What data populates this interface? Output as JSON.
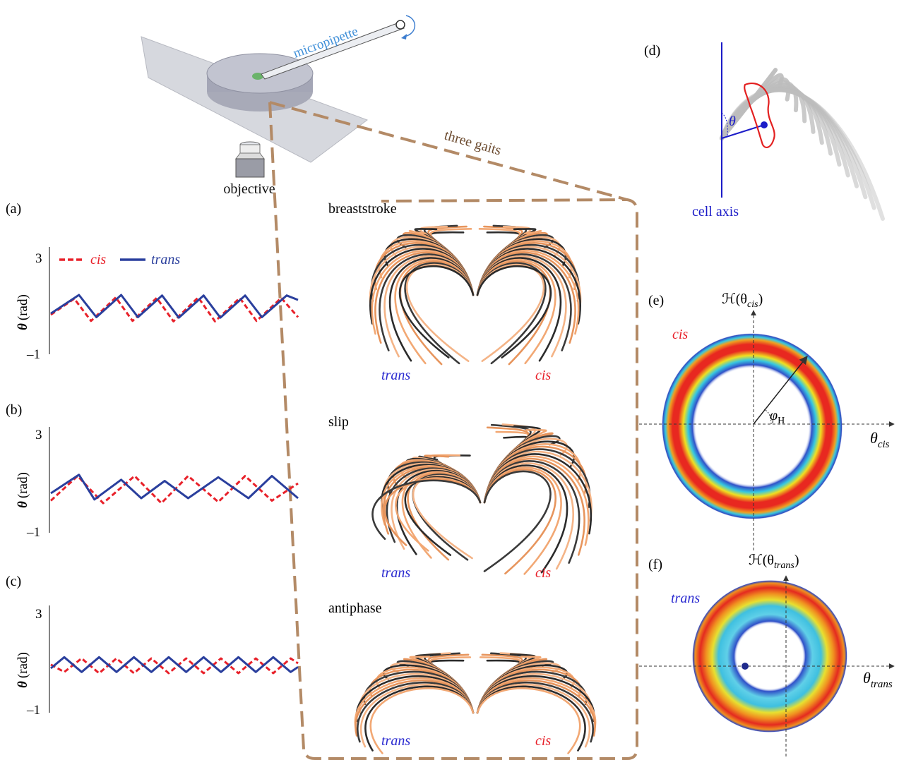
{
  "setup": {
    "micropipette_label": "micropipette",
    "objective_label": "objective",
    "gaits_label": "three gaits"
  },
  "panels": {
    "a": "(a)",
    "b": "(b)",
    "c": "(c)",
    "d": "(d)",
    "e": "(e)",
    "f": "(f)"
  },
  "legend": {
    "cis": "cis",
    "trans": "trans"
  },
  "axis": {
    "ylabel_theta": "θ",
    "ylabel_unit": "(rad)",
    "ytick_top": "3",
    "ytick_bottom": "–1"
  },
  "gaits": [
    {
      "title": "breaststroke",
      "left_label": "trans",
      "right_label": "cis"
    },
    {
      "title": "slip",
      "left_label": "trans",
      "right_label": "cis"
    },
    {
      "title": "antiphase",
      "left_label": "trans",
      "right_label": "cis"
    }
  ],
  "panel_d": {
    "theta": "θ",
    "cell_axis": "cell axis"
  },
  "panel_e": {
    "side_label": "cis",
    "ylabel": "ℋ(θ",
    "ylabel_sub": "cis",
    "ylabel_end": ")",
    "xlabel": "θ",
    "xlabel_sub": "cis",
    "phi": "φ",
    "phi_sub": "H"
  },
  "panel_f": {
    "side_label": "trans",
    "ylabel": "ℋ(θ",
    "ylabel_sub": "trans",
    "ylabel_end": ")",
    "xlabel": "θ",
    "xlabel_sub": "trans"
  },
  "chart_data": [
    {
      "type": "line",
      "panel": "a",
      "ylim": [
        -1,
        3
      ],
      "yticks": [
        3,
        -1
      ],
      "legend_placement": "top",
      "series": [
        {
          "name": "cis",
          "color": "#e8212a",
          "style": "dashed",
          "x": [
            0,
            0.35,
            0.6,
            0.97,
            1.22,
            1.58,
            1.83,
            2.2,
            2.45,
            2.82,
            3.07,
            3.44,
            3.69
          ],
          "values": [
            0.6,
            1.25,
            0.35,
            1.3,
            0.35,
            1.28,
            0.33,
            1.3,
            0.33,
            1.28,
            0.35,
            1.28,
            0.5
          ]
        },
        {
          "name": "trans",
          "color": "#2a3f9d",
          "style": "solid",
          "x": [
            0,
            0.42,
            0.68,
            1.05,
            1.3,
            1.66,
            1.91,
            2.28,
            2.53,
            2.9,
            3.15,
            3.52,
            3.69
          ],
          "values": [
            0.65,
            1.4,
            0.5,
            1.4,
            0.5,
            1.38,
            0.48,
            1.38,
            0.48,
            1.38,
            0.5,
            1.38,
            1.2
          ]
        }
      ]
    },
    {
      "type": "line",
      "panel": "b",
      "ylim": [
        -1,
        3
      ],
      "yticks": [
        3,
        -1
      ],
      "series": [
        {
          "name": "cis",
          "color": "#e8212a",
          "style": "dashed",
          "x": [
            0,
            0.4,
            0.78,
            1.25,
            1.65,
            2.05,
            2.5,
            2.9,
            3.3,
            3.69
          ],
          "values": [
            0.3,
            1.3,
            0.2,
            1.3,
            0.2,
            1.3,
            0.25,
            1.3,
            0.3,
            1.0
          ]
        },
        {
          "name": "trans",
          "color": "#2a3f9d",
          "style": "solid",
          "x": [
            0,
            0.42,
            0.65,
            1.05,
            1.35,
            1.7,
            2.05,
            2.5,
            2.95,
            3.3,
            3.69
          ],
          "values": [
            0.6,
            1.35,
            0.35,
            1.15,
            0.4,
            1.1,
            0.4,
            1.25,
            0.4,
            1.3,
            0.4
          ]
        }
      ]
    },
    {
      "type": "line",
      "panel": "c",
      "ylim": [
        -1,
        3
      ],
      "yticks": [
        3,
        -1
      ],
      "series": [
        {
          "name": "cis",
          "color": "#e8212a",
          "style": "dashed",
          "x": [
            0,
            0.2,
            0.46,
            0.72,
            0.98,
            1.24,
            1.5,
            1.76,
            2.02,
            2.28,
            2.54,
            2.8,
            3.06,
            3.32,
            3.58,
            3.69
          ],
          "values": [
            0.95,
            0.65,
            1.2,
            0.6,
            1.2,
            0.6,
            1.2,
            0.6,
            1.2,
            0.6,
            1.2,
            0.6,
            1.2,
            0.6,
            1.2,
            1.0
          ]
        },
        {
          "name": "trans",
          "color": "#2a3f9d",
          "style": "solid",
          "x": [
            0,
            0.2,
            0.46,
            0.72,
            0.98,
            1.24,
            1.5,
            1.76,
            2.02,
            2.28,
            2.54,
            2.8,
            3.06,
            3.32,
            3.58,
            3.69
          ],
          "values": [
            0.8,
            1.25,
            0.65,
            1.25,
            0.65,
            1.25,
            0.65,
            1.25,
            0.65,
            1.25,
            0.65,
            1.25,
            0.65,
            1.25,
            0.65,
            0.85
          ]
        }
      ]
    }
  ]
}
